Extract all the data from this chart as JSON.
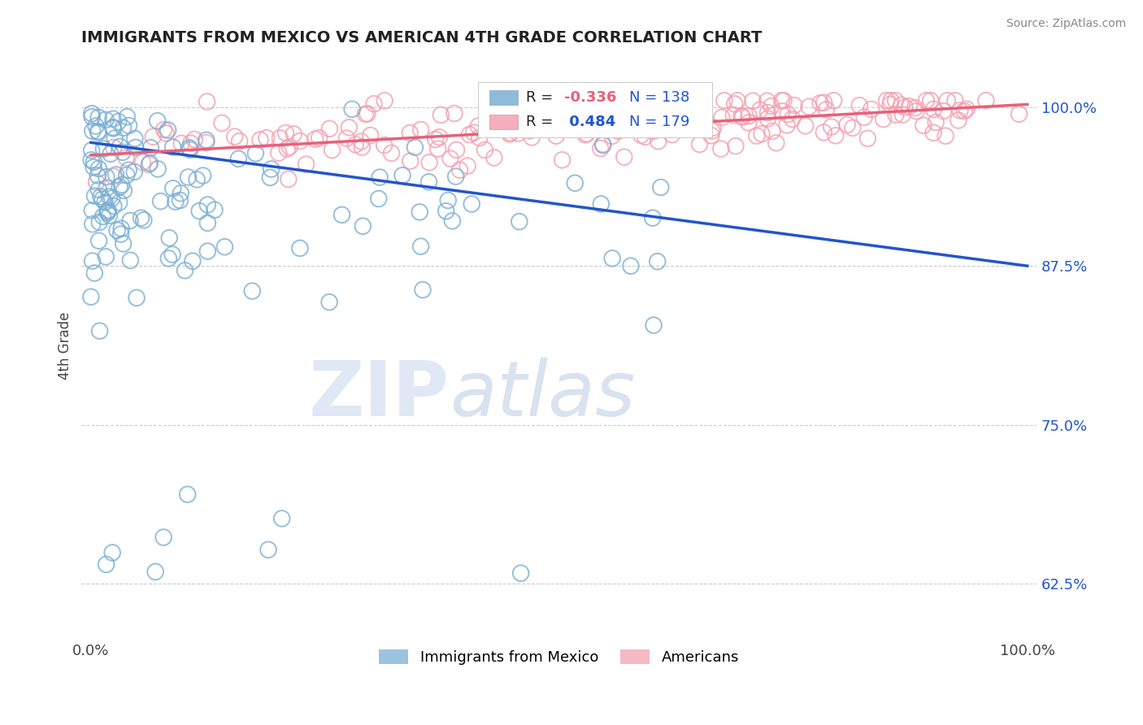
{
  "title": "IMMIGRANTS FROM MEXICO VS AMERICAN 4TH GRADE CORRELATION CHART",
  "source_text": "Source: ZipAtlas.com",
  "ylabel": "4th Grade",
  "blue_color": "#7bafd4",
  "pink_color": "#f4a0b0",
  "blue_line_color": "#2255cc",
  "pink_line_color": "#e8607a",
  "watermark_zip": "ZIP",
  "watermark_atlas": "atlas",
  "legend_labels": [
    "Immigrants from Mexico",
    "Americans"
  ],
  "blue_R": -0.336,
  "blue_N": 138,
  "pink_R": 0.484,
  "pink_N": 179,
  "ylim": [
    0.585,
    1.04
  ],
  "xlim": [
    -0.01,
    1.01
  ],
  "blue_line_x": [
    0.0,
    1.0
  ],
  "blue_line_y": [
    0.972,
    0.875
  ],
  "pink_line_x": [
    0.0,
    1.0
  ],
  "pink_line_y": [
    0.962,
    1.002
  ],
  "yticks": [
    0.625,
    0.75,
    0.875,
    1.0
  ],
  "ytick_labels": [
    "62.5%",
    "75.0%",
    "87.5%",
    "100.0%"
  ],
  "xtick_labels": [
    "0.0%",
    "100.0%"
  ],
  "blue_scatter_seed": 7,
  "pink_scatter_seed": 13
}
